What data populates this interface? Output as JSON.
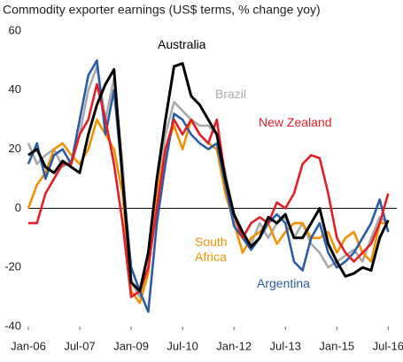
{
  "chart_data": {
    "type": "line",
    "title": "Commodity exporter earnings (US$ terms, % change yoy)",
    "x": [
      "2006-01",
      "2006-04",
      "2006-07",
      "2006-10",
      "2007-01",
      "2007-04",
      "2007-07",
      "2007-10",
      "2008-01",
      "2008-04",
      "2008-07",
      "2008-10",
      "2009-01",
      "2009-04",
      "2009-07",
      "2009-10",
      "2010-01",
      "2010-04",
      "2010-07",
      "2010-10",
      "2011-01",
      "2011-04",
      "2011-07",
      "2011-10",
      "2012-01",
      "2012-04",
      "2012-07",
      "2012-10",
      "2013-01",
      "2013-04",
      "2013-07",
      "2013-10",
      "2014-01",
      "2014-04",
      "2014-07",
      "2014-10",
      "2015-01",
      "2015-04",
      "2015-07",
      "2015-10",
      "2016-01",
      "2016-04",
      "2016-07"
    ],
    "series": [
      {
        "name": "Brazil",
        "color": "#aaaaaa",
        "values": [
          22,
          15,
          18,
          20,
          14,
          16,
          25,
          40,
          48,
          30,
          44,
          15,
          -25,
          -30,
          -20,
          5,
          25,
          36,
          33,
          30,
          28,
          28,
          25,
          12,
          -3,
          -10,
          -12,
          -5,
          -10,
          -5,
          -3,
          -10,
          -5,
          -12,
          -15,
          -20,
          -18,
          -16,
          -14,
          -18,
          -10,
          -3,
          -5
        ]
      },
      {
        "name": "South Africa",
        "color": "#f39200",
        "values": [
          0,
          8,
          12,
          20,
          22,
          18,
          15,
          20,
          30,
          25,
          20,
          5,
          -28,
          -32,
          -22,
          5,
          20,
          28,
          20,
          30,
          25,
          22,
          20,
          5,
          -5,
          -15,
          -10,
          -8,
          -5,
          -12,
          -8,
          -5,
          -5,
          -10,
          -10,
          -8,
          -15,
          -10,
          -8,
          -15,
          -18,
          -5,
          -5
        ]
      },
      {
        "name": "Argentina",
        "color": "#2a5caa",
        "values": [
          15,
          22,
          10,
          18,
          20,
          15,
          30,
          45,
          50,
          25,
          40,
          10,
          -20,
          -28,
          -35,
          -5,
          15,
          32,
          30,
          25,
          22,
          20,
          22,
          8,
          -6,
          -10,
          -14,
          -10,
          -5,
          -2,
          -5,
          -18,
          -21,
          -10,
          -5,
          -15,
          -20,
          -18,
          -15,
          -10,
          -5,
          3,
          -8
        ]
      },
      {
        "name": "New Zealand",
        "color": "#e41e26",
        "values": [
          -5,
          -5,
          5,
          10,
          15,
          15,
          25,
          30,
          42,
          30,
          15,
          -5,
          -30,
          -28,
          -20,
          0,
          20,
          30,
          25,
          30,
          25,
          22,
          30,
          10,
          -2,
          -10,
          -5,
          -3,
          -5,
          2,
          0,
          5,
          15,
          18,
          17,
          5,
          -10,
          -15,
          -18,
          -15,
          -12,
          -5,
          5
        ]
      },
      {
        "name": "Australia",
        "color": "#000000",
        "values": [
          18,
          20,
          14,
          12,
          16,
          14,
          12,
          25,
          35,
          42,
          47,
          10,
          -25,
          -28,
          -15,
          10,
          30,
          48,
          49,
          38,
          35,
          30,
          25,
          10,
          -2,
          -8,
          -13,
          -10,
          -3,
          -5,
          -2,
          -10,
          -10,
          -5,
          0,
          -12,
          -18,
          -23,
          -22,
          -20,
          -21,
          -10,
          -4
        ]
      }
    ],
    "xlim": [
      "2006-01",
      "2016-10"
    ],
    "xticks": [
      {
        "value": "2006-01",
        "label": "Jan-06"
      },
      {
        "value": "2007-07",
        "label": "Jul-07"
      },
      {
        "value": "2009-01",
        "label": "Jan-09"
      },
      {
        "value": "2010-07",
        "label": "Jul-10"
      },
      {
        "value": "2012-01",
        "label": "Jan-12"
      },
      {
        "value": "2013-07",
        "label": "Jul-13"
      },
      {
        "value": "2015-01",
        "label": "Jan-15"
      },
      {
        "value": "2016-07",
        "label": "Jul-16"
      }
    ],
    "ylim": [
      -40,
      60
    ],
    "yticks": [
      -40,
      -20,
      0,
      20,
      40,
      60
    ]
  }
}
